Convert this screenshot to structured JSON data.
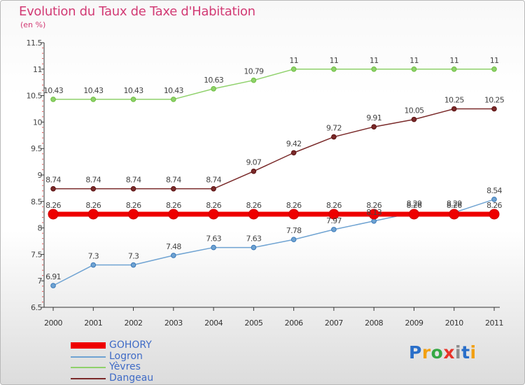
{
  "title": "Evolution du Taux de Taxe d'Habitation",
  "unit": "(en %)",
  "chart_data": {
    "type": "line",
    "title": "Evolution du Taux de Taxe d'Habitation",
    "ylabel": "(en %)",
    "xlabel": "",
    "categories": [
      "2000",
      "2001",
      "2002",
      "2003",
      "2004",
      "2005",
      "2006",
      "2007",
      "2008",
      "2009",
      "2010",
      "2011"
    ],
    "ylim": [
      6.5,
      11.5
    ],
    "yticks": [
      "6.5",
      "7",
      "7.5",
      "8",
      "8.5",
      "9",
      "9.5",
      "10",
      "10.5",
      "11",
      "11.5"
    ],
    "series": [
      {
        "name": "GOHORY",
        "color": "#ee0000",
        "values": [
          8.26,
          8.26,
          8.26,
          8.26,
          8.26,
          8.26,
          8.26,
          8.26,
          8.26,
          8.26,
          8.26,
          8.26
        ],
        "labels": [
          "8.26",
          "8.26",
          "8.26",
          "8.26",
          "8.26",
          "8.26",
          "8.26",
          "8.26",
          "8.26",
          "8.26",
          "8.26",
          "8.26"
        ]
      },
      {
        "name": "Logron",
        "color": "#6fa3d2",
        "values": [
          6.91,
          7.3,
          7.3,
          7.48,
          7.63,
          7.63,
          7.78,
          7.97,
          8.13,
          8.29,
          8.29,
          8.54
        ],
        "labels": [
          "6.91",
          "7.3",
          "7.3",
          "7.48",
          "7.63",
          "7.63",
          "7.78",
          "7.97",
          "8.13",
          "8.29",
          "8.29",
          "8.54"
        ]
      },
      {
        "name": "Yèvres",
        "color": "#8fd16b",
        "values": [
          10.43,
          10.43,
          10.43,
          10.43,
          10.63,
          10.79,
          11,
          11,
          11,
          11,
          11,
          11
        ],
        "labels": [
          "10.43",
          "10.43",
          "10.43",
          "10.43",
          "10.63",
          "10.79",
          "11",
          "11",
          "11",
          "11",
          "11",
          "11"
        ]
      },
      {
        "name": "Dangeau",
        "color": "#7a2a2a",
        "values": [
          8.74,
          8.74,
          8.74,
          8.74,
          8.74,
          9.07,
          9.42,
          9.72,
          9.91,
          10.05,
          10.25,
          10.25
        ],
        "labels": [
          "8.74",
          "8.74",
          "8.74",
          "8.74",
          "8.74",
          "9.07",
          "9.42",
          "9.72",
          "9.91",
          "10.05",
          "10.25",
          "10.25"
        ]
      }
    ]
  },
  "legend": [
    {
      "label": "GOHORY",
      "color": "#ee0000",
      "thickness": "thick"
    },
    {
      "label": "Logron",
      "color": "#6fa3d2",
      "thickness": "thin"
    },
    {
      "label": "Yèvres",
      "color": "#8fd16b",
      "thickness": "thin"
    },
    {
      "label": "Dangeau",
      "color": "#7a2a2a",
      "thickness": "thin"
    }
  ],
  "logo": {
    "letters": [
      "P",
      "r",
      "o",
      "x",
      "i",
      "t",
      "i"
    ],
    "colors": [
      "#2a6fc9",
      "#f2a012",
      "#35a845",
      "#e8352a",
      "#8c8c8c",
      "#2a6fc9",
      "#f2a012"
    ]
  }
}
